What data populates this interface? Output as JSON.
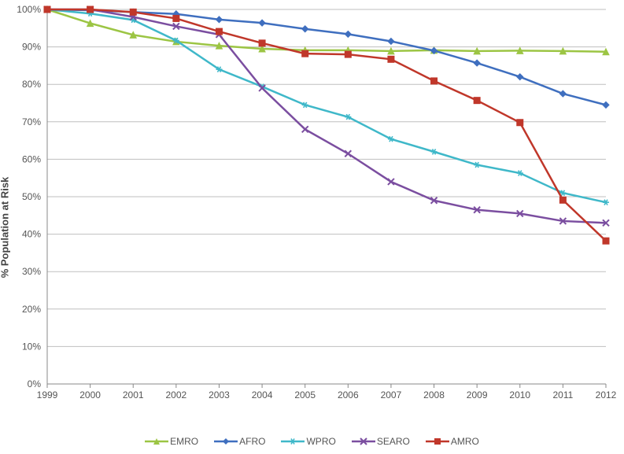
{
  "chart": {
    "type": "line",
    "ylabel": "% Population at Risk",
    "categories": [
      "1999",
      "2000",
      "2001",
      "2002",
      "2003",
      "2004",
      "2005",
      "2006",
      "2007",
      "2008",
      "2009",
      "2010",
      "2011",
      "2012"
    ],
    "ylim": [
      0,
      100
    ],
    "ytick_step": 10,
    "ytick_suffix": "%",
    "background_color": "#ffffff",
    "grid_color": "#bfbfbf",
    "axis_color": "#888888",
    "tick_fontsize": 12,
    "label_fontsize": 13,
    "line_width": 2.5,
    "marker_size": 8,
    "series": [
      {
        "name": "EMRO",
        "color": "#9cc544",
        "marker": "triangle",
        "values": [
          100,
          96.3,
          93.2,
          91.4,
          90.3,
          89.5,
          89.1,
          89.1,
          88.9,
          89.1,
          88.9,
          89.0,
          88.9,
          88.7
        ]
      },
      {
        "name": "AFRO",
        "color": "#3f6fbf",
        "marker": "diamond",
        "values": [
          100,
          99.8,
          99.3,
          98.8,
          97.3,
          96.4,
          94.8,
          93.4,
          91.5,
          89.0,
          85.7,
          82.0,
          77.5,
          74.5
        ]
      },
      {
        "name": "WPRO",
        "color": "#3fb8c9",
        "marker": "star",
        "values": [
          100,
          98.9,
          97.2,
          91.7,
          84.0,
          79.4,
          74.5,
          71.3,
          65.4,
          62.0,
          58.5,
          56.3,
          51.0,
          48.5
        ]
      },
      {
        "name": "SEARO",
        "color": "#7b4ea0",
        "marker": "x",
        "values": [
          100,
          100,
          98.0,
          95.5,
          93.3,
          79.0,
          68.0,
          61.5,
          54.0,
          49.0,
          46.5,
          45.5,
          43.5,
          43.0
        ]
      },
      {
        "name": "AMRO",
        "color": "#c0372a",
        "marker": "square",
        "values": [
          100,
          100,
          99.3,
          97.6,
          94.1,
          91.0,
          88.2,
          88.0,
          86.7,
          80.9,
          75.7,
          69.8,
          49.1,
          38.2
        ]
      }
    ]
  }
}
